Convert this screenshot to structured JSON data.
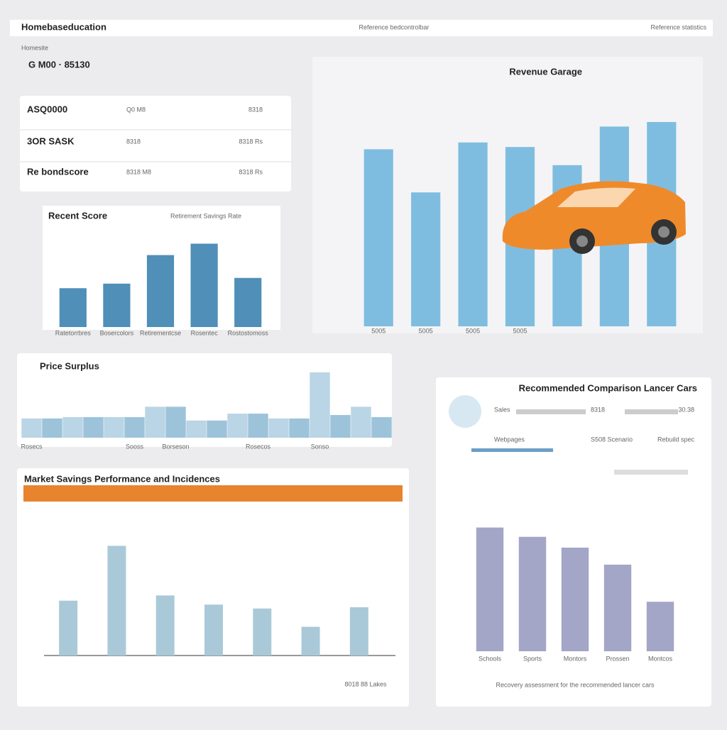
{
  "header": {
    "brand": "Homebaseducation",
    "center": "Reference bedcontrolbar",
    "right": "Reference statistics"
  },
  "summary": {
    "caption": "Homesite",
    "value": "G M00 · 85130"
  },
  "table": {
    "rows": [
      [
        "ASQ0000",
        "Q0 M8",
        "8318"
      ],
      [
        "3OR SASK",
        "8318",
        "8318 Rs"
      ],
      [
        "Re bondscore",
        "8318 M8",
        "8318 Rs"
      ]
    ]
  },
  "comparison": {
    "rows": [
      [
        "Sales",
        "8318",
        "30.38"
      ],
      [
        "Webpages",
        "S508 Scenario",
        "Rebuild spec"
      ]
    ]
  },
  "chart_data": [
    {
      "type": "bar",
      "title": "Recent Score",
      "subtitle": "Retirement Savings Rate",
      "categories": [
        "Ratetorrbres",
        "Bosercolors",
        "Retirementcse",
        "Rosentec",
        "Rostostomoss"
      ],
      "values": [
        34,
        38,
        63,
        73,
        43
      ],
      "ylim": [
        0,
        100
      ],
      "color": "#4f8fb8"
    },
    {
      "type": "bar",
      "title": "Revenue Garage",
      "categories": [
        "5005",
        "5005",
        "5005",
        "5005",
        null,
        null,
        null
      ],
      "values": [
        78,
        59,
        81,
        79,
        71,
        88,
        90
      ],
      "ylim": [
        0,
        100
      ],
      "color": "#7fbde0"
    },
    {
      "type": "bar",
      "title": "Price Surplus",
      "categories": [
        "Rosecs",
        null,
        null,
        null,
        null,
        "Sooss",
        null,
        "Borseson",
        null,
        null,
        null,
        "Rosecos",
        null,
        null,
        "Sonso",
        null,
        null,
        null
      ],
      "values": [
        28,
        28,
        30,
        30,
        30,
        30,
        45,
        45,
        25,
        25,
        35,
        35,
        28,
        28,
        95,
        33,
        45,
        30
      ],
      "ylim": [
        0,
        100
      ],
      "color": "#9dc3da"
    },
    {
      "type": "bar",
      "title": "Market Savings Performance and Incidences",
      "footer": "8018 88 Lakes",
      "categories": [
        null,
        null,
        null,
        null,
        null,
        null,
        null
      ],
      "values": [
        42,
        84,
        46,
        39,
        36,
        22,
        37
      ],
      "ylim": [
        0,
        100
      ],
      "color": "#a9c9d8"
    },
    {
      "type": "bar",
      "title": "Recommended Comparison Lancer Cars",
      "footer": "Recovery assessment for the recommended lancer cars",
      "categories": [
        "Schools",
        "Sports",
        "Montors",
        "Prossen",
        "Montcos"
      ],
      "values": [
        80,
        74,
        67,
        56,
        32
      ],
      "ylim": [
        0,
        100
      ],
      "color": "#a3a6c6"
    }
  ]
}
